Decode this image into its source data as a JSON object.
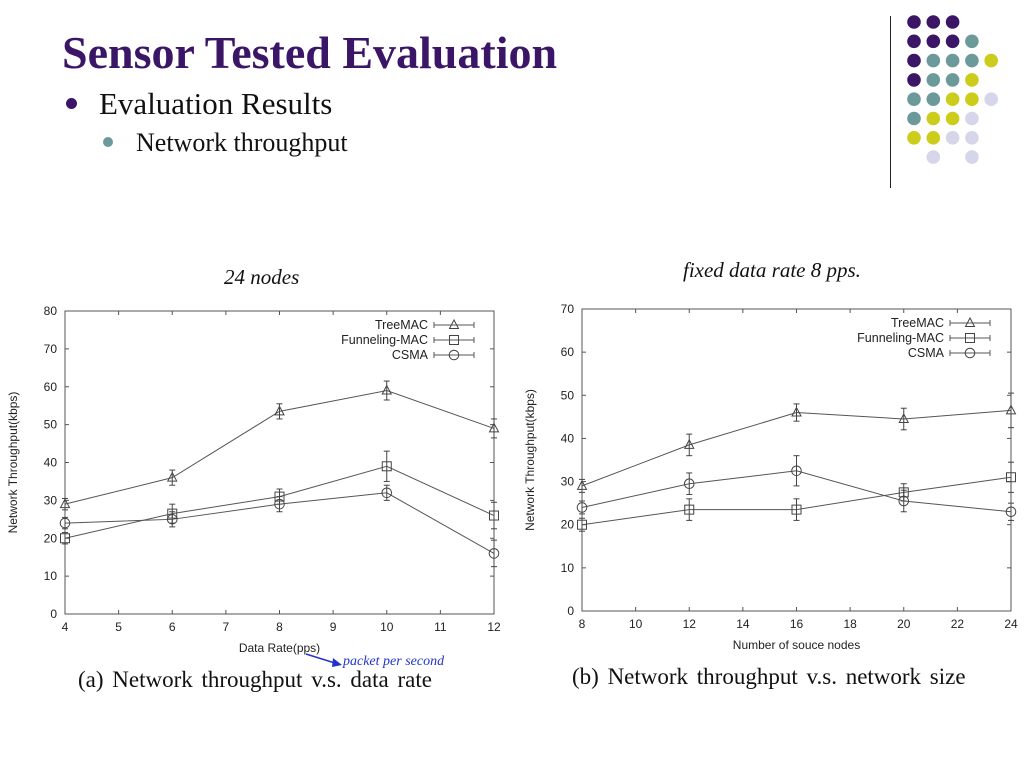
{
  "slide": {
    "title": "Sensor Tested Evaluation",
    "bullet1": "Evaluation Results",
    "bullet2": "Network throughput",
    "annotation_left": "24 nodes",
    "annotation_right": "fixed data rate 8 pps.",
    "arrow_note": "packet per second"
  },
  "colors": {
    "title": "#3b1667",
    "purple": "#3b1667",
    "teal": "#6c9a9a",
    "yellow": "#cccc1a",
    "lavender": "#d6d6ea",
    "series_line": "#555555",
    "arrow": "#2233cc"
  },
  "decoration": {
    "dot_grid": [
      [
        "purple",
        "purple",
        "purple",
        "",
        "",
        ""
      ],
      [
        "purple",
        "purple",
        "purple",
        "teal",
        "",
        ""
      ],
      [
        "purple",
        "teal",
        "teal",
        "teal",
        "yellow",
        ""
      ],
      [
        "purple",
        "teal",
        "teal",
        "yellow",
        "",
        ""
      ],
      [
        "teal",
        "teal",
        "yellow",
        "yellow",
        "lavender",
        ""
      ],
      [
        "teal",
        "yellow",
        "yellow",
        "lavender",
        "",
        ""
      ],
      [
        "yellow",
        "yellow",
        "lavender",
        "lavender",
        "",
        ""
      ],
      [
        "",
        "lavender",
        "",
        "lavender",
        "",
        ""
      ]
    ]
  },
  "chart_data": [
    {
      "type": "line",
      "caption": "(a) Network throughput v.s. data rate",
      "xlabel": "Data Rate(pps)",
      "ylabel": "Network Throughput(kbps)",
      "xlim": [
        4,
        12
      ],
      "ylim": [
        0,
        80
      ],
      "xticks": [
        4,
        5,
        6,
        7,
        8,
        9,
        10,
        11,
        12
      ],
      "yticks": [
        0,
        10,
        20,
        30,
        40,
        50,
        60,
        70,
        80
      ],
      "legend_position": "top-right",
      "grid": false,
      "series": [
        {
          "name": "TreeMAC",
          "marker": "triangle",
          "x": [
            4,
            6,
            8,
            10,
            12
          ],
          "y": [
            29,
            36,
            53.5,
            59,
            49
          ],
          "err": [
            1.5,
            2,
            2,
            2.5,
            2.5
          ]
        },
        {
          "name": "Funneling-MAC",
          "marker": "square",
          "x": [
            4,
            6,
            8,
            10,
            12
          ],
          "y": [
            20,
            26.5,
            31,
            39,
            26
          ],
          "err": [
            1.5,
            2.5,
            2,
            4,
            3.5
          ]
        },
        {
          "name": "CSMA",
          "marker": "circle",
          "x": [
            4,
            6,
            8,
            10,
            12
          ],
          "y": [
            24,
            25,
            29,
            32,
            16
          ],
          "err": [
            1.5,
            2,
            2,
            2,
            3.5
          ]
        }
      ]
    },
    {
      "type": "line",
      "caption": "(b) Network throughput v.s. network size",
      "xlabel": "Number of souce nodes",
      "ylabel": "Network Throughput(kbps)",
      "xlim": [
        8,
        24
      ],
      "ylim": [
        0,
        70
      ],
      "xticks": [
        8,
        10,
        12,
        14,
        16,
        18,
        20,
        22,
        24
      ],
      "yticks": [
        0,
        10,
        20,
        30,
        40,
        50,
        60,
        70
      ],
      "legend_position": "top-right",
      "grid": false,
      "series": [
        {
          "name": "TreeMAC",
          "marker": "triangle",
          "x": [
            8,
            12,
            16,
            20,
            24
          ],
          "y": [
            29,
            38.5,
            46,
            44.5,
            46.5
          ],
          "err": [
            1.5,
            2.5,
            2,
            2.5,
            4
          ]
        },
        {
          "name": "Funneling-MAC",
          "marker": "square",
          "x": [
            8,
            12,
            16,
            20,
            24
          ],
          "y": [
            20,
            23.5,
            23.5,
            27.5,
            31
          ],
          "err": [
            1.5,
            2.5,
            2.5,
            2,
            3.5
          ]
        },
        {
          "name": "CSMA",
          "marker": "circle",
          "x": [
            8,
            12,
            16,
            20,
            24
          ],
          "y": [
            24,
            29.5,
            32.5,
            25.5,
            23
          ],
          "err": [
            1.5,
            2.5,
            3.5,
            2.5,
            2
          ]
        }
      ]
    }
  ]
}
